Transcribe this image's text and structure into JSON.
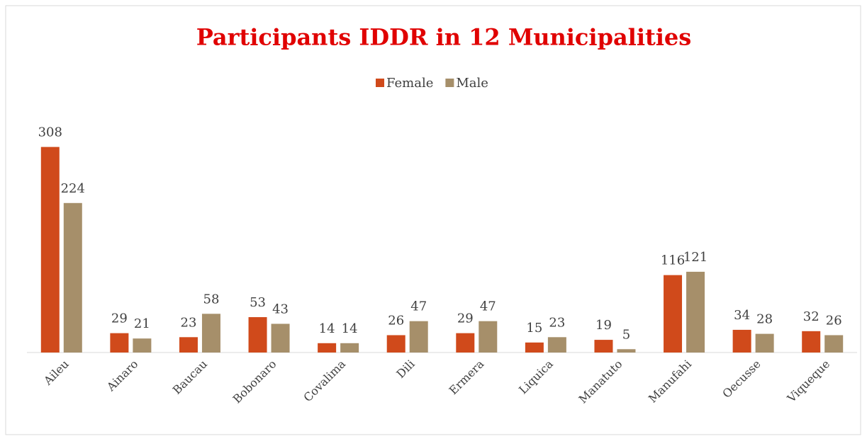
{
  "chart_data": {
    "type": "bar",
    "title": "Participants IDDR in 12 Municipalities",
    "categories": [
      "Aileu",
      "Ainaro",
      "Baucau",
      "Bobonaro",
      "Covalima",
      "Dili",
      "Ermera",
      "Liquica",
      "Manatuto",
      "Manufahi",
      "Oecusse",
      "Viqueque"
    ],
    "series": [
      {
        "name": "Female",
        "color": "#d04a1b",
        "values": [
          308,
          29,
          23,
          53,
          14,
          26,
          29,
          15,
          19,
          116,
          34,
          32
        ]
      },
      {
        "name": "Male",
        "color": "#a68f6a",
        "values": [
          224,
          21,
          58,
          43,
          14,
          47,
          47,
          23,
          5,
          121,
          28,
          26
        ]
      }
    ],
    "ylim": [
      0,
      350
    ],
    "legend": "top"
  }
}
